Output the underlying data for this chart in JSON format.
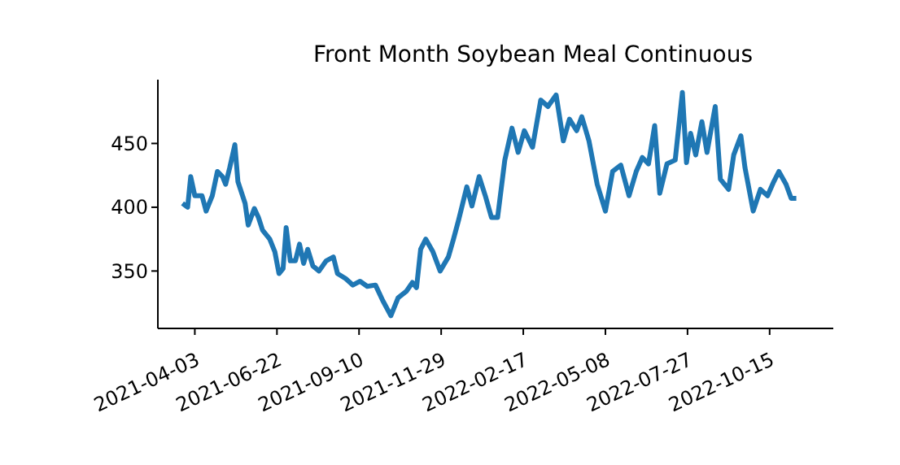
{
  "chart_data": {
    "type": "line",
    "title": "Front Month Soybean Meal Continuous",
    "x": [
      "2021-03-22",
      "2021-03-27",
      "2021-03-30",
      "2021-04-03",
      "2021-04-10",
      "2021-04-14",
      "2021-04-20",
      "2021-04-25",
      "2021-04-30",
      "2021-05-03",
      "2021-05-07",
      "2021-05-12",
      "2021-05-15",
      "2021-05-22",
      "2021-05-25",
      "2021-05-31",
      "2021-06-04",
      "2021-06-08",
      "2021-06-15",
      "2021-06-20",
      "2021-06-24",
      "2021-06-28",
      "2021-07-01",
      "2021-07-05",
      "2021-07-10",
      "2021-07-14",
      "2021-07-18",
      "2021-07-22",
      "2021-07-27",
      "2021-08-02",
      "2021-08-09",
      "2021-08-16",
      "2021-08-20",
      "2021-08-28",
      "2021-09-04",
      "2021-09-11",
      "2021-09-18",
      "2021-09-26",
      "2021-10-03",
      "2021-10-11",
      "2021-10-18",
      "2021-10-26",
      "2021-11-01",
      "2021-11-05",
      "2021-11-09",
      "2021-11-14",
      "2021-11-21",
      "2021-11-28",
      "2021-12-06",
      "2021-12-11",
      "2021-12-16",
      "2021-12-24",
      "2021-12-29",
      "2022-01-05",
      "2022-01-11",
      "2022-01-17",
      "2022-01-23",
      "2022-01-30",
      "2022-02-06",
      "2022-02-12",
      "2022-02-18",
      "2022-02-26",
      "2022-03-06",
      "2022-03-13",
      "2022-03-21",
      "2022-03-28",
      "2022-04-03",
      "2022-04-10",
      "2022-04-15",
      "2022-04-22",
      "2022-04-30",
      "2022-05-08",
      "2022-05-15",
      "2022-05-23",
      "2022-05-31",
      "2022-06-07",
      "2022-06-13",
      "2022-06-19",
      "2022-06-25",
      "2022-06-30",
      "2022-07-07",
      "2022-07-15",
      "2022-07-22",
      "2022-07-26",
      "2022-07-30",
      "2022-08-04",
      "2022-08-10",
      "2022-08-15",
      "2022-08-23",
      "2022-08-28",
      "2022-09-05",
      "2022-09-10",
      "2022-09-17",
      "2022-09-21",
      "2022-09-29",
      "2022-10-06",
      "2022-10-13",
      "2022-10-19",
      "2022-10-24",
      "2022-10-31",
      "2022-11-05",
      "2022-11-10"
    ],
    "series": [
      {
        "color": "#1f77b4",
        "values": [
          403,
          400,
          424,
          409,
          409,
          397,
          409,
          428,
          424,
          418,
          431,
          449,
          420,
          403,
          386,
          399,
          392,
          382,
          375,
          365,
          348,
          352,
          384,
          358,
          358,
          371,
          356,
          367,
          354,
          350,
          358,
          361,
          348,
          344,
          339,
          342,
          338,
          339,
          327,
          315,
          329,
          334,
          341,
          337,
          367,
          375,
          365,
          350,
          361,
          375,
          390,
          416,
          401,
          424,
          409,
          392,
          392,
          437,
          462,
          443,
          460,
          447,
          484,
          479,
          488,
          452,
          469,
          460,
          471,
          452,
          418,
          397,
          428,
          433,
          409,
          428,
          439,
          434,
          464,
          411,
          434,
          437,
          490,
          435,
          458,
          441,
          467,
          443,
          479,
          422,
          414,
          441,
          456,
          431,
          397,
          414,
          409,
          420,
          428,
          418,
          407,
          407
        ]
      }
    ],
    "xlim": [
      "2021-02-26",
      "2022-12-16"
    ],
    "xticks": [
      "2021-04-03",
      "2021-06-22",
      "2021-09-10",
      "2021-11-29",
      "2022-02-17",
      "2022-05-08",
      "2022-07-27",
      "2022-10-15"
    ],
    "ylim": [
      305,
      500
    ],
    "yticks": [
      350,
      400,
      450
    ],
    "grid": false,
    "legend": false
  }
}
